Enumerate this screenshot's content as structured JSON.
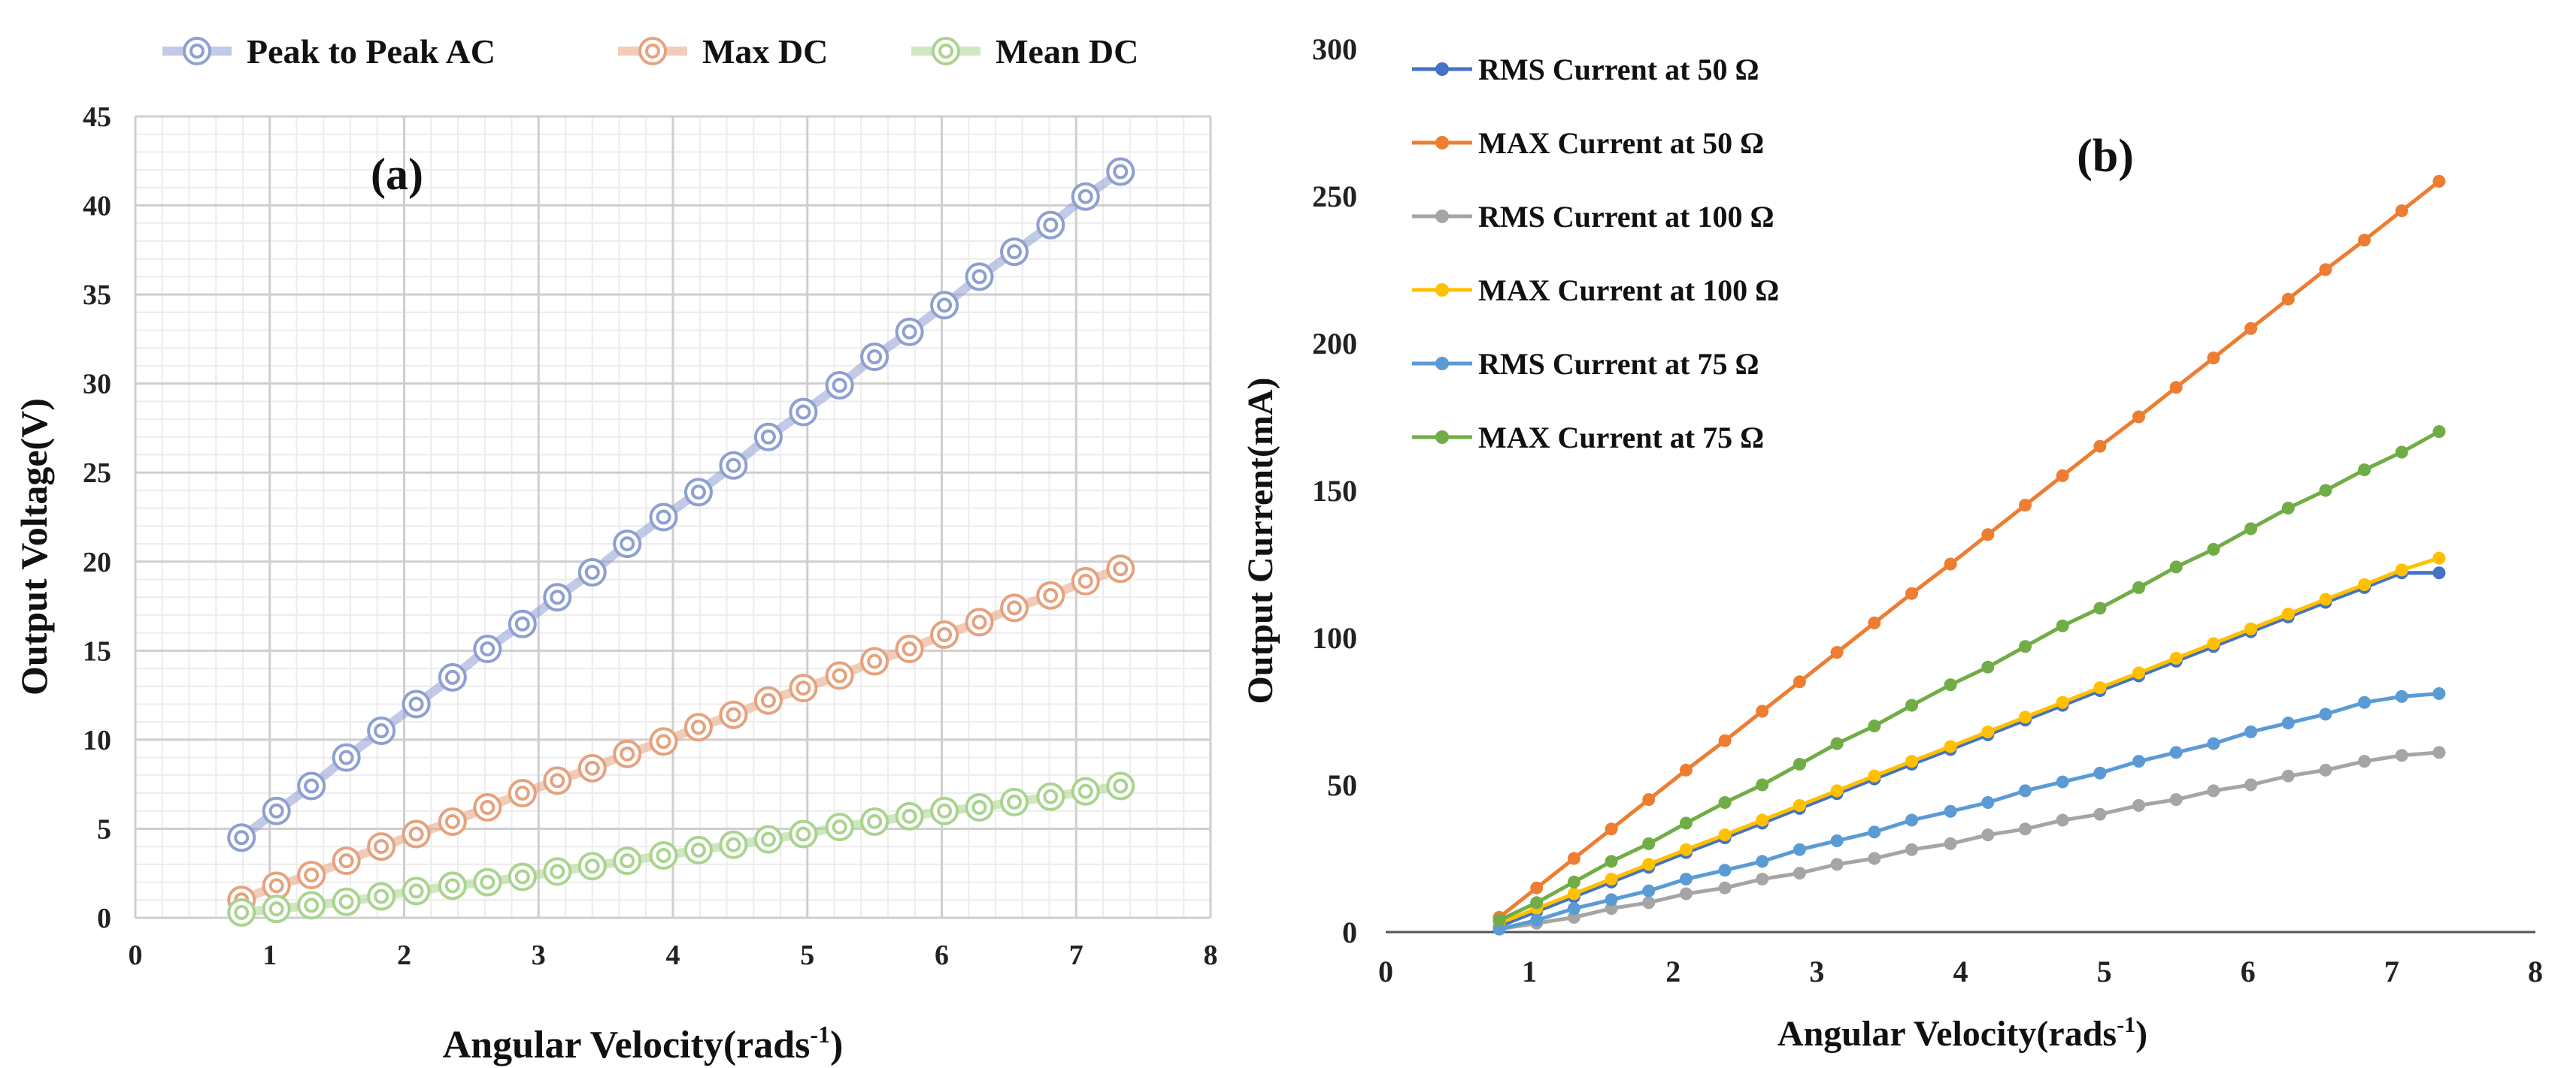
{
  "chart_data": [
    {
      "type": "line",
      "panel_label": "(a)",
      "xlabel": "Angular Velocity(rads",
      "xlabel_sup": "-1",
      "xlabel_close": ")",
      "ylabel": "Output Voltage(V)",
      "xlim": [
        0,
        8
      ],
      "ylim": [
        0,
        45
      ],
      "xticks": [
        0,
        1,
        2,
        3,
        4,
        5,
        6,
        7,
        8
      ],
      "yticks": [
        0,
        5,
        10,
        15,
        20,
        25,
        30,
        35,
        40,
        45
      ],
      "grid": true,
      "legend_position": "top",
      "x": [
        0.79,
        1.05,
        1.31,
        1.57,
        1.83,
        2.09,
        2.36,
        2.62,
        2.88,
        3.14,
        3.4,
        3.66,
        3.93,
        4.19,
        4.45,
        4.71,
        4.97,
        5.24,
        5.5,
        5.76,
        6.02,
        6.28,
        6.54,
        6.81,
        7.07,
        7.33
      ],
      "series": [
        {
          "name": "Peak to Peak AC",
          "color": "#8e9fd1",
          "values": [
            4.5,
            6.0,
            7.4,
            9.0,
            10.5,
            12.0,
            13.5,
            15.1,
            16.5,
            18.0,
            19.4,
            21.0,
            22.5,
            23.9,
            25.4,
            27.0,
            28.4,
            29.9,
            31.5,
            32.9,
            34.4,
            36.0,
            37.4,
            38.9,
            40.5,
            41.9
          ]
        },
        {
          "name": "Max DC",
          "color": "#e5a27e",
          "values": [
            1.0,
            1.8,
            2.4,
            3.2,
            4.0,
            4.7,
            5.4,
            6.2,
            7.0,
            7.7,
            8.4,
            9.2,
            9.9,
            10.7,
            11.4,
            12.2,
            12.9,
            13.6,
            14.4,
            15.1,
            15.9,
            16.6,
            17.4,
            18.1,
            18.9,
            19.6
          ]
        },
        {
          "name": "Mean DC",
          "color": "#a9d48f",
          "values": [
            0.3,
            0.5,
            0.7,
            0.9,
            1.2,
            1.5,
            1.8,
            2.0,
            2.3,
            2.6,
            2.9,
            3.2,
            3.5,
            3.8,
            4.1,
            4.4,
            4.7,
            5.1,
            5.4,
            5.7,
            6.0,
            6.2,
            6.5,
            6.8,
            7.1,
            7.4
          ]
        }
      ]
    },
    {
      "type": "line",
      "panel_label": "(b)",
      "xlabel": "Angular Velocity(rads",
      "xlabel_sup": "-1",
      "xlabel_close": ")",
      "ylabel": "Output Current(mA)",
      "xlim": [
        0,
        8
      ],
      "ylim": [
        0,
        300
      ],
      "xticks": [
        0,
        1,
        2,
        3,
        4,
        5,
        6,
        7,
        8
      ],
      "yticks": [
        0,
        50,
        100,
        150,
        200,
        250,
        300
      ],
      "grid": false,
      "legend_position": "top-left",
      "x": [
        0.79,
        1.05,
        1.31,
        1.57,
        1.83,
        2.09,
        2.36,
        2.62,
        2.88,
        3.14,
        3.4,
        3.66,
        3.93,
        4.19,
        4.45,
        4.71,
        4.97,
        5.24,
        5.5,
        5.76,
        6.02,
        6.28,
        6.54,
        6.81,
        7.07,
        7.33
      ],
      "series": [
        {
          "name": "RMS Current at 50 Ω",
          "color": "#4472c4",
          "values": [
            2,
            7,
            12,
            17,
            22,
            27,
            32,
            37,
            42,
            47,
            52,
            57,
            62,
            67,
            72,
            77,
            82,
            87,
            92,
            97,
            102,
            107,
            112,
            117,
            122,
            122
          ]
        },
        {
          "name": "MAX Current at 50 Ω",
          "color": "#ed7d31",
          "values": [
            5,
            15,
            25,
            35,
            45,
            55,
            65,
            75,
            85,
            95,
            105,
            115,
            125,
            135,
            145,
            155,
            165,
            175,
            185,
            195,
            205,
            215,
            225,
            235,
            245,
            255
          ]
        },
        {
          "name": "RMS Current at 100 Ω",
          "color": "#a5a5a5",
          "values": [
            1,
            3,
            5,
            8,
            10,
            13,
            15,
            18,
            20,
            23,
            25,
            28,
            30,
            33,
            35,
            38,
            40,
            43,
            45,
            48,
            50,
            53,
            55,
            58,
            60,
            61
          ]
        },
        {
          "name": "MAX Current at 100 Ω",
          "color": "#ffc000",
          "values": [
            3,
            8,
            13,
            18,
            23,
            28,
            33,
            38,
            43,
            48,
            53,
            58,
            63,
            68,
            73,
            78,
            83,
            88,
            93,
            98,
            103,
            108,
            113,
            118,
            123,
            127
          ]
        },
        {
          "name": "RMS Current at 75 Ω",
          "color": "#5b9bd5",
          "values": [
            1,
            4,
            8,
            11,
            14,
            18,
            21,
            24,
            28,
            31,
            34,
            38,
            41,
            44,
            48,
            51,
            54,
            58,
            61,
            64,
            68,
            71,
            74,
            78,
            80,
            81
          ]
        },
        {
          "name": "MAX Current at 75 Ω",
          "color": "#70ad47",
          "values": [
            4,
            10,
            17,
            24,
            30,
            37,
            44,
            50,
            57,
            64,
            70,
            77,
            84,
            90,
            97,
            104,
            110,
            117,
            124,
            130,
            137,
            144,
            150,
            157,
            163,
            170
          ]
        }
      ]
    }
  ]
}
